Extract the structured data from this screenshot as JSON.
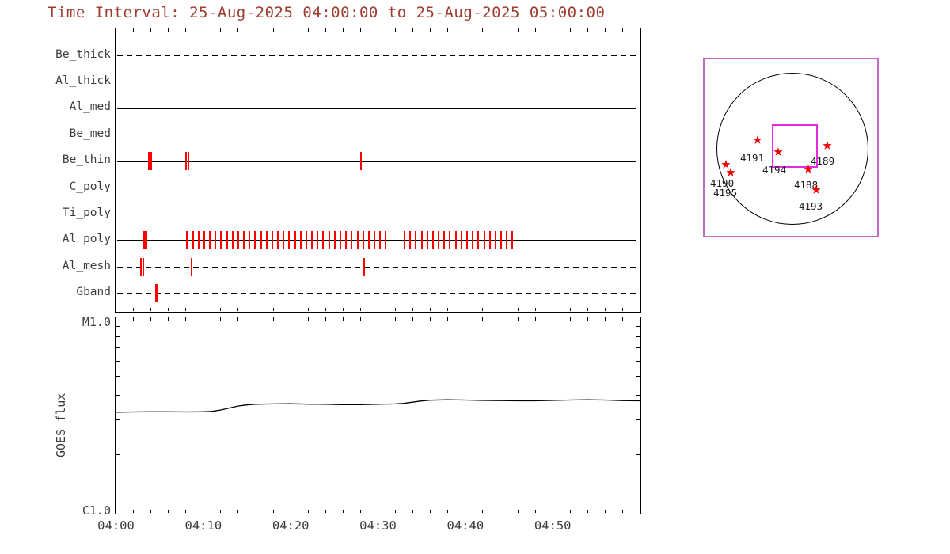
{
  "title": "Time Interval: 25-Aug-2025 04:00:00 to 25-Aug-2025 05:00:00",
  "colors": {
    "title_text": "#9e3c2e",
    "axis_text": "#3c3c3c",
    "plot_line": "#000000",
    "exposure_tick": "#ff0000",
    "star": "#f00000",
    "outer_box": "#c468c4",
    "fov_box": "#e428e4"
  },
  "chart_data": [
    {
      "type": "timeline",
      "x_axis": {
        "start": "04:00",
        "end": "05:00",
        "range_minutes": [
          0,
          60
        ]
      },
      "rows": [
        {
          "label": "Be_thick",
          "line_style": "dashed",
          "exposure_ticks_min": []
        },
        {
          "label": "Al_thick",
          "line_style": "dashed",
          "exposure_ticks_min": []
        },
        {
          "label": "Al_med",
          "line_style": "solid",
          "exposure_ticks_min": []
        },
        {
          "label": "Be_med",
          "line_style": "solid",
          "exposure_ticks_min": []
        },
        {
          "label": "Be_thin",
          "line_style": "solid",
          "exposure_ticks_min": [
            3.7,
            3.95,
            8.0,
            8.25,
            28.05
          ]
        },
        {
          "label": "C_poly",
          "line_style": "solid",
          "exposure_ticks_min": []
        },
        {
          "label": "Ti_poly",
          "line_style": "dashed",
          "exposure_ticks_min": []
        },
        {
          "label": "Al_poly",
          "line_style": "solid",
          "exposure_ticks_min": [
            3.1,
            3.25,
            3.4,
            8.1,
            8.75,
            9.4,
            10.05,
            10.7,
            11.35,
            12.0,
            12.65,
            13.3,
            13.95,
            14.6,
            15.25,
            15.9,
            16.55,
            17.2,
            17.85,
            18.5,
            19.15,
            19.8,
            20.45,
            21.1,
            21.75,
            22.4,
            23.05,
            23.7,
            24.35,
            25.0,
            25.65,
            26.3,
            26.95,
            27.6,
            28.25,
            28.9,
            29.55,
            30.2,
            30.85,
            33.0,
            33.65,
            34.3,
            34.95,
            35.6,
            36.25,
            36.9,
            37.55,
            38.2,
            38.85,
            39.5,
            40.15,
            40.8,
            41.45,
            42.1,
            42.75,
            43.4,
            44.05,
            44.7,
            45.35
          ]
        },
        {
          "label": "Al_mesh",
          "line_style": "dashed",
          "exposure_ticks_min": [
            2.85,
            3.05,
            8.6,
            28.4
          ]
        },
        {
          "label": "Gband",
          "line_style": "dashed",
          "exposure_ticks_min": [
            4.5,
            4.75
          ]
        }
      ]
    },
    {
      "type": "line",
      "ylabel": "GOES flux",
      "y_axis": {
        "top_label": "M1.0",
        "bottom_label": "C1.0",
        "scale": "log-one-decade"
      },
      "x_ticks": [
        {
          "minute": 0,
          "label": "04:00"
        },
        {
          "minute": 10,
          "label": "04:10"
        },
        {
          "minute": 20,
          "label": "04:20"
        },
        {
          "minute": 30,
          "label": "04:30"
        },
        {
          "minute": 40,
          "label": "04:40"
        },
        {
          "minute": 50,
          "label": "04:50"
        }
      ],
      "curve": {
        "x_minutes": [
          0,
          2,
          4,
          6,
          8,
          10,
          11,
          12,
          13,
          14,
          15,
          16,
          18,
          20,
          22,
          24,
          26,
          28,
          30,
          32,
          33,
          34,
          35,
          36,
          38,
          40,
          42,
          44,
          46,
          48,
          50,
          52,
          54,
          56,
          58,
          60
        ],
        "y_frac_of_decade": [
          0.515,
          0.516,
          0.517,
          0.517,
          0.516,
          0.517,
          0.519,
          0.526,
          0.536,
          0.546,
          0.552,
          0.555,
          0.557,
          0.558,
          0.556,
          0.555,
          0.553,
          0.553,
          0.555,
          0.557,
          0.56,
          0.566,
          0.572,
          0.576,
          0.578,
          0.577,
          0.575,
          0.574,
          0.573,
          0.573,
          0.575,
          0.577,
          0.578,
          0.577,
          0.574,
          0.573
        ]
      }
    },
    {
      "type": "solar_map",
      "active_regions": [
        {
          "noaa": "4191",
          "star_xy": [
            67,
            101
          ],
          "label_xy": [
            45,
            117
          ]
        },
        {
          "noaa": "4194",
          "star_xy": [
            93,
            116
          ],
          "label_xy": [
            73,
            132
          ]
        },
        {
          "noaa": "4189",
          "star_xy": [
            155,
            108
          ],
          "label_xy": [
            134,
            121
          ]
        },
        {
          "noaa": "4190",
          "star_xy": [
            27,
            132
          ],
          "label_xy": [
            7,
            149
          ]
        },
        {
          "noaa": "4195",
          "star_xy": [
            33,
            142
          ],
          "label_xy": [
            11,
            161
          ]
        },
        {
          "noaa": "4188",
          "star_xy": [
            131,
            138
          ],
          "label_xy": [
            113,
            151
          ]
        },
        {
          "noaa": "4193",
          "star_xy": [
            141,
            164
          ],
          "label_xy": [
            119,
            178
          ]
        }
      ]
    }
  ]
}
